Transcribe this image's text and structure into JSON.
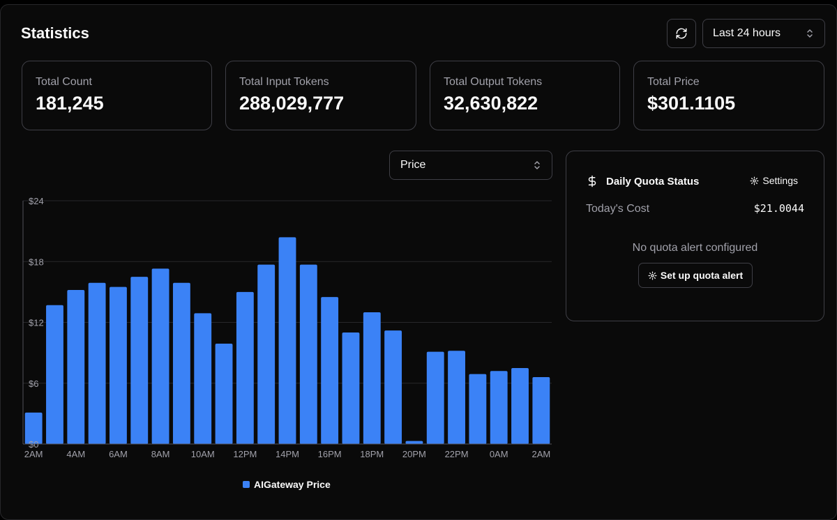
{
  "header": {
    "title": "Statistics",
    "range_label": "Last 24 hours"
  },
  "icons": {
    "refresh": "refresh-icon",
    "chevron": "chevron-up-down-icon",
    "dollar": "dollar-icon",
    "gear": "gear-icon"
  },
  "stats": [
    {
      "label": "Total Count",
      "value": "181,245"
    },
    {
      "label": "Total Input Tokens",
      "value": "288,029,777"
    },
    {
      "label": "Total Output Tokens",
      "value": "32,630,822"
    },
    {
      "label": "Total Price",
      "value": "$301.1105"
    }
  ],
  "metric_select": {
    "label": "Price"
  },
  "quota": {
    "title": "Daily Quota Status",
    "settings_label": "Settings",
    "today_label": "Today's Cost",
    "today_value": "$21.0044",
    "no_alert_text": "No quota alert configured",
    "setup_button": "Set up quota alert"
  },
  "chart_data": {
    "type": "bar",
    "ylim": [
      0,
      24
    ],
    "y_ticks": [
      "$0",
      "$6",
      "$12",
      "$18",
      "$24"
    ],
    "x_tick_labels": [
      "2AM",
      "4AM",
      "6AM",
      "8AM",
      "10AM",
      "12PM",
      "14PM",
      "16PM",
      "18PM",
      "20PM",
      "22PM",
      "0AM",
      "2AM"
    ],
    "series": [
      {
        "name": "AIGateway Price",
        "color": "#3b82f6",
        "values": [
          3.1,
          13.7,
          15.2,
          15.9,
          15.5,
          16.5,
          17.3,
          15.9,
          12.9,
          9.9,
          15.0,
          17.7,
          20.4,
          17.7,
          14.5,
          11.0,
          13.0,
          11.2,
          0.3,
          9.1,
          9.2,
          6.9,
          7.2,
          7.5,
          6.6
        ]
      }
    ],
    "grid": true,
    "legend": "bottom-center"
  }
}
